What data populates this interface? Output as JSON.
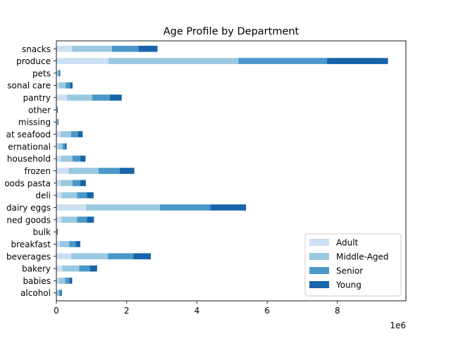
{
  "chart_data": {
    "type": "bar",
    "orientation": "horizontal",
    "stacked": true,
    "title": "Age Profile by Department",
    "xlabel": "",
    "ylabel": "",
    "x_offset_text": "1e6",
    "xlim": [
      0,
      9950000
    ],
    "xticks": [
      0,
      2000000,
      4000000,
      6000000,
      8000000
    ],
    "xtick_labels": [
      "0",
      "2",
      "4",
      "6",
      "8"
    ],
    "grid": false,
    "legend_position": "lower right",
    "categories": [
      "alcohol",
      "babies",
      "bakery",
      "beverages",
      "breakfast",
      "bulk",
      "canned goods",
      "dairy eggs",
      "deli",
      "dry goods pasta",
      "frozen",
      "household",
      "international",
      "meat seafood",
      "missing",
      "other",
      "pantry",
      "personal care",
      "pets",
      "produce",
      "snacks"
    ],
    "tick_labels": [
      "alcohol",
      "babies",
      "bakery",
      "beverages",
      "breakfast",
      "bulk",
      "ned goods",
      "dairy eggs",
      "deli",
      "oods pasta",
      "frozen",
      "household",
      "ernational",
      "at seafood",
      "missing",
      "other",
      "pantry",
      "sonal care",
      "pets",
      "produce",
      "snacks"
    ],
    "series": [
      {
        "name": "Adult",
        "color": "#cde0f2",
        "values": [
          20000,
          60000,
          170000,
          420000,
          100000,
          5000,
          150000,
          850000,
          150000,
          120000,
          350000,
          130000,
          50000,
          120000,
          10000,
          5000,
          300000,
          80000,
          20000,
          1480000,
          450000
        ]
      },
      {
        "name": "Middle-Aged",
        "color": "#9ac8e0",
        "values": [
          60000,
          190000,
          480000,
          1050000,
          270000,
          15000,
          440000,
          2100000,
          440000,
          340000,
          850000,
          330000,
          120000,
          300000,
          25000,
          15000,
          720000,
          190000,
          40000,
          3700000,
          1130000
        ]
      },
      {
        "name": "Senior",
        "color": "#4a98c9",
        "values": [
          40000,
          120000,
          300000,
          720000,
          180000,
          10000,
          280000,
          1430000,
          280000,
          220000,
          600000,
          220000,
          70000,
          200000,
          15000,
          10000,
          500000,
          120000,
          30000,
          2520000,
          760000
        ]
      },
      {
        "name": "Young",
        "color": "#1764ab",
        "values": [
          35000,
          80000,
          210000,
          500000,
          130000,
          8000,
          200000,
          1020000,
          190000,
          160000,
          420000,
          150000,
          50000,
          130000,
          8000,
          8000,
          340000,
          70000,
          20000,
          1740000,
          540000
        ]
      }
    ]
  }
}
